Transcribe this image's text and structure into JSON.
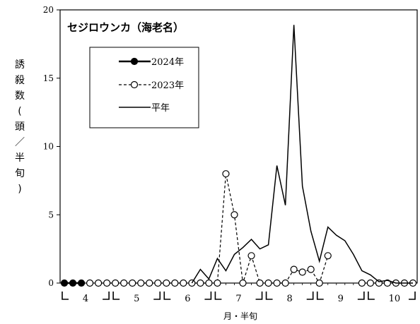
{
  "chart_data": {
    "type": "line",
    "title": "セジロウンカ（海老名）",
    "ylabel": "誘殺数(頭／半旬)",
    "xlabel": "月・半旬",
    "ylim": [
      0,
      20
    ],
    "yticks": [
      "0",
      "5",
      "10",
      "15",
      "20"
    ],
    "months": [
      "4",
      "5",
      "6",
      "7",
      "8",
      "9",
      "10"
    ],
    "legend": {
      "placement": "top-left",
      "entries": [
        "2024年",
        "2023年",
        "平年"
      ]
    },
    "grid": false,
    "series": [
      {
        "name": "2024年",
        "style": "solid-filled-circle",
        "values": [
          0,
          0,
          0
        ]
      },
      {
        "name": "2023年",
        "style": "dashed-open-circle",
        "values": [
          null,
          null,
          null,
          0,
          0,
          0,
          0,
          0,
          0,
          0,
          0,
          0,
          0,
          0,
          0,
          0,
          0,
          0,
          0,
          8,
          5,
          0,
          2,
          0,
          0,
          0,
          0,
          1,
          0.8,
          1,
          0,
          2,
          null,
          null,
          null,
          0,
          0,
          0,
          0,
          0,
          0,
          0
        ]
      },
      {
        "name": "平年",
        "style": "solid-line",
        "values": [
          null,
          null,
          null,
          null,
          null,
          null,
          null,
          null,
          null,
          null,
          null,
          null,
          null,
          null,
          null,
          0,
          1,
          0.3,
          1.8,
          0.9,
          2.1,
          2.6,
          3.2,
          2.5,
          2.8,
          8.6,
          5.7,
          18.9,
          7.1,
          3.8,
          1.6,
          4.1,
          3.5,
          3.1,
          2.1,
          0.9,
          0.6,
          0.1,
          0.2,
          0,
          0,
          0
        ]
      }
    ]
  }
}
